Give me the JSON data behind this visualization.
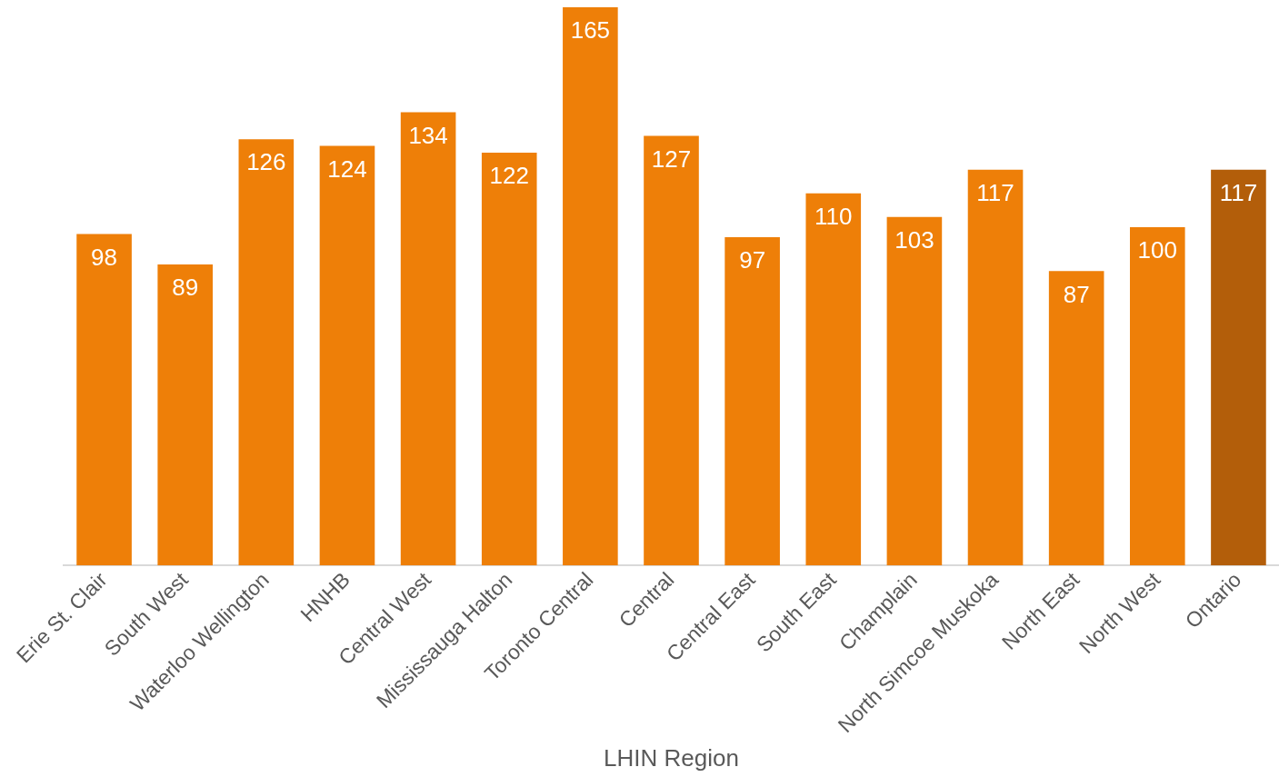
{
  "chart_data": {
    "type": "bar",
    "xlabel": "LHIN Region",
    "categories": [
      "Erie St. Clair",
      "South West",
      "Waterloo Wellington",
      "HNHB",
      "Central West",
      "Mississauga Halton",
      "Toronto Central",
      "Central",
      "Central East",
      "South East",
      "Champlain",
      "North Simcoe Muskoka",
      "North East",
      "North West",
      "Ontario"
    ],
    "values": [
      98,
      89,
      126,
      124,
      134,
      122,
      165,
      127,
      97,
      110,
      103,
      117,
      87,
      100,
      117
    ],
    "colors": [
      "#ee7f08",
      "#ee7f08",
      "#ee7f08",
      "#ee7f08",
      "#ee7f08",
      "#ee7f08",
      "#ee7f08",
      "#ee7f08",
      "#ee7f08",
      "#ee7f08",
      "#ee7f08",
      "#ee7f08",
      "#ee7f08",
      "#ee7f08",
      "#b35e0a"
    ],
    "data_labels": true,
    "grid": false,
    "legend": false
  }
}
